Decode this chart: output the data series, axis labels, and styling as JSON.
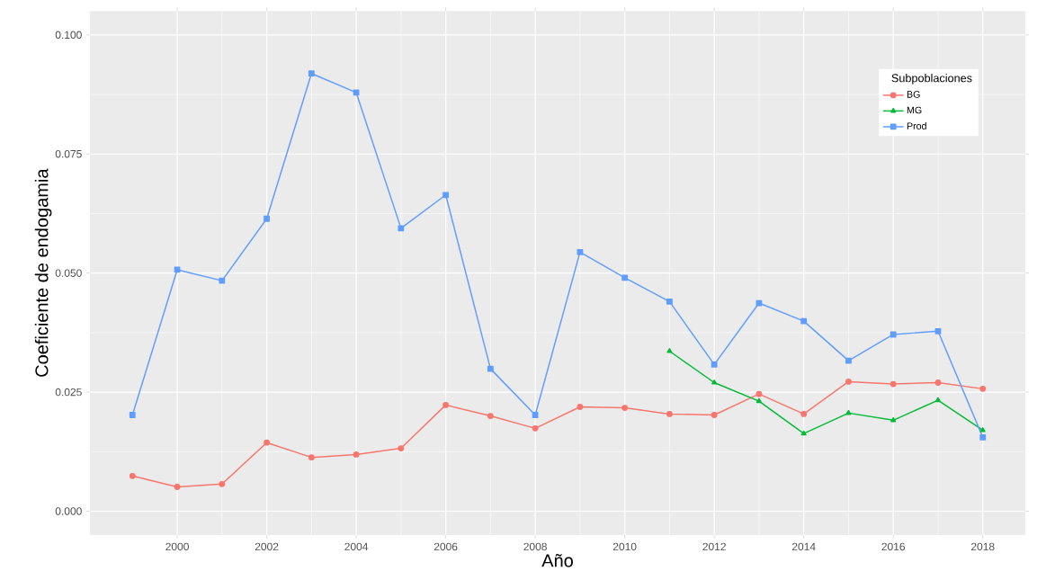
{
  "chart_data": {
    "type": "line",
    "xlabel": "Año",
    "ylabel": "Coeficiente de endogamia",
    "legend_title": "Subpoblaciones",
    "x": [
      1999,
      2000,
      2001,
      2002,
      2003,
      2004,
      2005,
      2006,
      2007,
      2008,
      2009,
      2010,
      2011,
      2012,
      2013,
      2014,
      2015,
      2016,
      2017,
      2018
    ],
    "series": [
      {
        "name": "BG",
        "color": "#f8766d",
        "marker": "circle",
        "values": [
          0.0074,
          0.0051,
          0.0057,
          0.0144,
          0.0113,
          0.0119,
          0.0132,
          0.0223,
          0.02,
          0.0174,
          0.0219,
          0.0217,
          0.0204,
          0.0202,
          0.0246,
          0.0204,
          0.0272,
          0.0267,
          0.027,
          0.0257
        ]
      },
      {
        "name": "MG",
        "color": "#00ba38",
        "marker": "triangle",
        "values": [
          null,
          null,
          null,
          null,
          null,
          null,
          null,
          null,
          null,
          null,
          null,
          null,
          0.0336,
          0.027,
          0.0231,
          0.0163,
          0.0206,
          0.0191,
          0.0233,
          0.017
        ]
      },
      {
        "name": "Prod",
        "color": "#619cff",
        "marker": "square",
        "values": [
          0.0202,
          0.0507,
          0.0484,
          0.0614,
          0.0919,
          0.0879,
          0.0594,
          0.0664,
          0.0299,
          0.0202,
          0.0544,
          0.049,
          0.044,
          0.0308,
          0.0437,
          0.0399,
          0.0316,
          0.0371,
          0.0378,
          0.0155
        ]
      }
    ],
    "xlim": [
      1998.05,
      2018.95
    ],
    "xticks": [
      2000,
      2002,
      2004,
      2006,
      2008,
      2010,
      2012,
      2014,
      2016,
      2018
    ],
    "ylim": [
      -0.005,
      0.105
    ],
    "yticks": [
      {
        "value": 0,
        "label": "0.000"
      },
      {
        "value": 0.025,
        "label": "0.025"
      },
      {
        "value": 0.05,
        "label": "0.050"
      },
      {
        "value": 0.075,
        "label": "0.075"
      },
      {
        "value": 0.1,
        "label": "0.100"
      }
    ],
    "grid": true,
    "legend": "top right",
    "line_style": "solid"
  }
}
